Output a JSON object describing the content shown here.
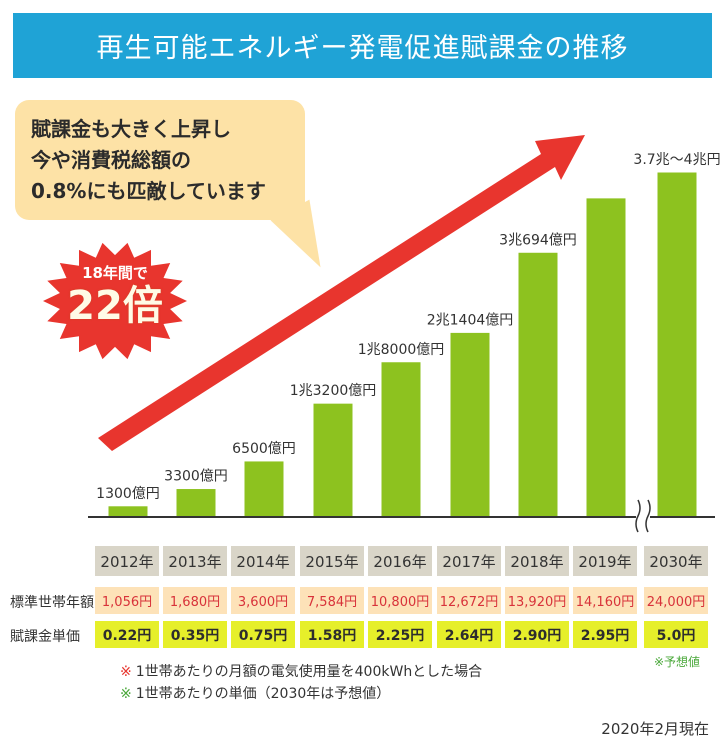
{
  "title": "再生可能エネルギー発電促進賦課金の推移",
  "callout": {
    "line1": "賦課金も大きく上昇し",
    "line2": "今や消費税総額の",
    "line3": "0.8%にも匹敵しています"
  },
  "badge": {
    "small": "18年間で",
    "big": "22倍"
  },
  "colors": {
    "header": "#1fa3d6",
    "bar": "#8dc21f",
    "arrow": "#e8352e",
    "callout": "#fde2a6"
  },
  "chart_data": {
    "type": "bar",
    "categories": [
      "2012年",
      "2013年",
      "2014年",
      "2015年",
      "2016年",
      "2017年",
      "2018年",
      "2019年",
      "2030年"
    ],
    "values": [
      1300,
      3300,
      6500,
      13200,
      18000,
      21404,
      30694,
      37000,
      40000
    ],
    "data_labels": [
      "1300億円",
      "3300億円",
      "6500億円",
      "1兆3200億円",
      "1兆8000億円",
      "2兆1404億円",
      "3兆694億円",
      "",
      "3.7兆～4兆円"
    ],
    "unit": "億円",
    "axis_break_before": "2030年"
  },
  "table": {
    "row1_label": "標準世帯年額",
    "row1": [
      "1,056円",
      "1,680円",
      "3,600円",
      "7,584円",
      "10,800円",
      "12,672円",
      "13,920円",
      "14,160円",
      "24,000円"
    ],
    "row2_label": "賦課金単価",
    "row2": [
      "0.22円",
      "0.35円",
      "0.75円",
      "1.58円",
      "2.25円",
      "2.64円",
      "2.90円",
      "2.95円",
      "5.0円"
    ],
    "forecast_mark": "※予想値"
  },
  "notes": [
    {
      "mark": "※",
      "text": "1世帯あたりの月額の電気使用量を400kWhとした場合",
      "color": "#e8352e"
    },
    {
      "mark": "※",
      "text": "1世帯あたりの単価（2030年は予想値）",
      "color": "#4aa83a"
    }
  ],
  "as_of": "2020年2月現在"
}
